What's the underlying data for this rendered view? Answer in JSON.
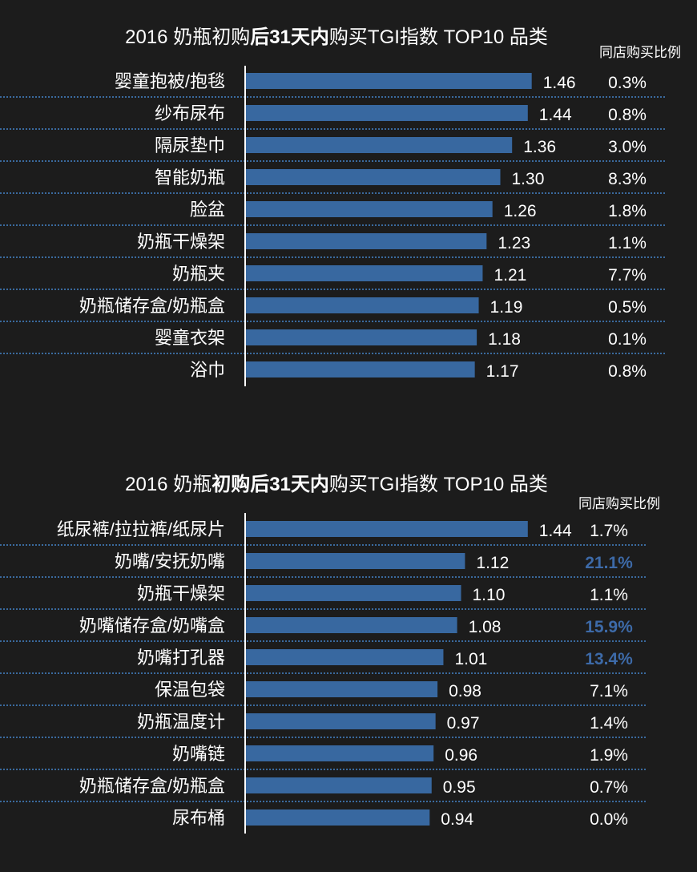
{
  "colors": {
    "background": "#1c1c1c",
    "bar": "#3868a0",
    "highlight": "#3d6aa8",
    "text": "#ffffff",
    "divider": "#3a6a9e"
  },
  "chart_data": [
    {
      "type": "bar",
      "orientation": "horizontal",
      "title_parts": [
        {
          "text": "2016 奶瓶初购",
          "bold": false
        },
        {
          "text": "后31天内",
          "bold": true
        },
        {
          "text": "购买TGI指数 TOP10 品类",
          "bold": false
        }
      ],
      "column_header": "同店购买比例",
      "categories": [
        "婴童抱被/抱毯",
        "纱布尿布",
        "隔尿垫巾",
        "智能奶瓶",
        "脸盆",
        "奶瓶干燥架",
        "奶瓶夹",
        "奶瓶储存盒/奶瓶盒",
        "婴童衣架",
        "浴巾"
      ],
      "values": [
        1.46,
        1.44,
        1.36,
        1.3,
        1.26,
        1.23,
        1.21,
        1.19,
        1.18,
        1.17
      ],
      "value_labels": [
        "1.46",
        "1.44",
        "1.36",
        "1.30",
        "1.26",
        "1.23",
        "1.21",
        "1.19",
        "1.18",
        "1.17"
      ],
      "share": [
        "0.3%",
        "0.8%",
        "3.0%",
        "8.3%",
        "1.8%",
        "1.1%",
        "7.7%",
        "0.5%",
        "0.1%",
        "0.8%"
      ],
      "share_highlight": [
        false,
        false,
        false,
        false,
        false,
        false,
        false,
        false,
        false,
        false
      ],
      "xlim": [
        0,
        1.6
      ]
    },
    {
      "type": "bar",
      "orientation": "horizontal",
      "title_parts": [
        {
          "text": "2016 奶瓶",
          "bold": false
        },
        {
          "text": "初购后31天内",
          "bold": true
        },
        {
          "text": "购买TGI指数 TOP10 品类",
          "bold": false
        }
      ],
      "column_header": "同店购买比例",
      "categories": [
        "纸尿裤/拉拉裤/纸尿片",
        "奶嘴/安抚奶嘴",
        "奶瓶干燥架",
        "奶嘴储存盒/奶嘴盒",
        "奶嘴打孔器",
        "保温包袋",
        "奶瓶温度计",
        "奶嘴链",
        "奶瓶储存盒/奶瓶盒",
        "尿布桶"
      ],
      "values": [
        1.44,
        1.12,
        1.1,
        1.08,
        1.01,
        0.98,
        0.97,
        0.96,
        0.95,
        0.94
      ],
      "value_labels": [
        "1.44",
        "1.12",
        "1.10",
        "1.08",
        "1.01",
        "0.98",
        "0.97",
        "0.96",
        "0.95",
        "0.94"
      ],
      "share": [
        "1.7%",
        "21.1%",
        "1.1%",
        "15.9%",
        "13.4%",
        "7.1%",
        "1.4%",
        "1.9%",
        "0.7%",
        "0.0%"
      ],
      "share_highlight": [
        false,
        true,
        false,
        true,
        true,
        false,
        false,
        false,
        false,
        false
      ],
      "xlim": [
        0,
        1.6
      ]
    }
  ]
}
